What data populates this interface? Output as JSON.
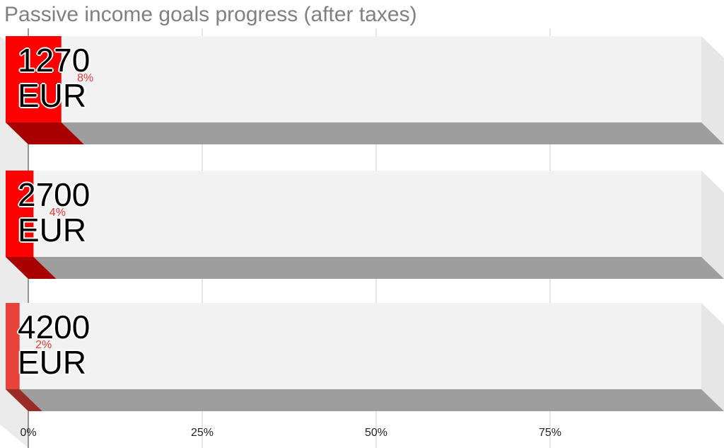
{
  "chart_data": {
    "type": "bar3d",
    "title": "Passive income goals progress (after taxes)",
    "categories": [
      "1270 EUR",
      "2700 EUR",
      "4200 EUR"
    ],
    "values": [
      8,
      4,
      2
    ],
    "value_labels": [
      "8%",
      "4%",
      "2%"
    ],
    "colors": [
      "#ff0000",
      "#ff0000",
      "#e8433a"
    ],
    "xlim": [
      0,
      100
    ],
    "xticks": [
      {
        "value": 0,
        "label": "0%"
      },
      {
        "value": 25,
        "label": "25%"
      },
      {
        "value": 50,
        "label": "50%"
      },
      {
        "value": 75,
        "label": "75%"
      }
    ],
    "grid": true
  }
}
